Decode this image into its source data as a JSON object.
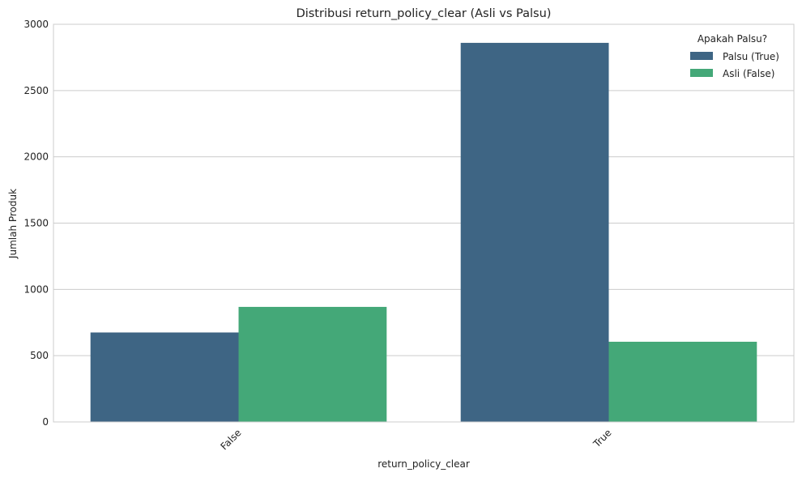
{
  "chart_data": {
    "type": "bar",
    "title": "Distribusi return_policy_clear (Asli vs Palsu)",
    "xlabel": "return_policy_clear",
    "ylabel": "Jumlah Produk",
    "categories": [
      "False",
      "True"
    ],
    "series": [
      {
        "name": "Palsu (True)",
        "color": "#3e6584",
        "values": [
          675,
          2860
        ]
      },
      {
        "name": "Asli (False)",
        "color": "#44a878",
        "values": [
          868,
          605
        ]
      }
    ],
    "ylim": [
      0,
      3000
    ],
    "yticks": [
      0,
      500,
      1000,
      1500,
      2000,
      2500,
      3000
    ],
    "grid": "y",
    "legend": {
      "title": "Apakah Palsu?",
      "position": "top-right"
    }
  }
}
